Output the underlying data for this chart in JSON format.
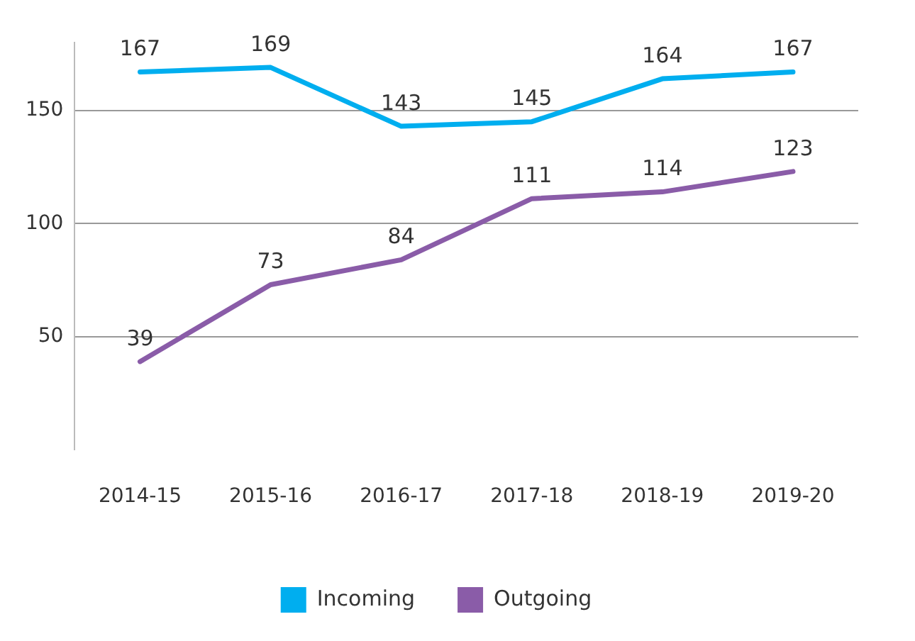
{
  "chart_data": {
    "type": "line",
    "categories": [
      "2014-15",
      "2015-16",
      "2016-17",
      "2017-18",
      "2018-19",
      "2019-20"
    ],
    "series": [
      {
        "name": "Incoming",
        "color": "#00aeef",
        "values": [
          167,
          169,
          143,
          145,
          164,
          167
        ]
      },
      {
        "name": "Outgoing",
        "color": "#8a5ca8",
        "values": [
          39,
          73,
          84,
          111,
          114,
          123
        ]
      }
    ],
    "ylim": [
      0,
      180
    ],
    "yticks": [
      50,
      100,
      150
    ],
    "grid": "y",
    "legend": "bottom",
    "data_labels": true,
    "marker": "none",
    "line_style": "solid"
  }
}
